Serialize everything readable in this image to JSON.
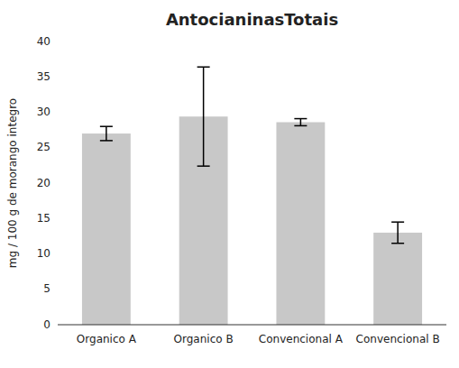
{
  "chart_data": {
    "type": "bar",
    "title": "AntocianinasTotais",
    "categories": [
      "Organico A",
      "Organico B",
      "Convencional A",
      "Convencional B"
    ],
    "values": [
      27.0,
      29.4,
      28.6,
      13.0
    ],
    "errors": [
      1.0,
      7.0,
      0.5,
      1.5
    ],
    "color": "#c8c8c8",
    "ylabel": "mg / 100 g de morango integro",
    "ylim": [
      0,
      40
    ],
    "yticks": [
      0,
      5,
      10,
      15,
      20,
      25,
      30,
      35,
      40
    ],
    "grid": false
  }
}
